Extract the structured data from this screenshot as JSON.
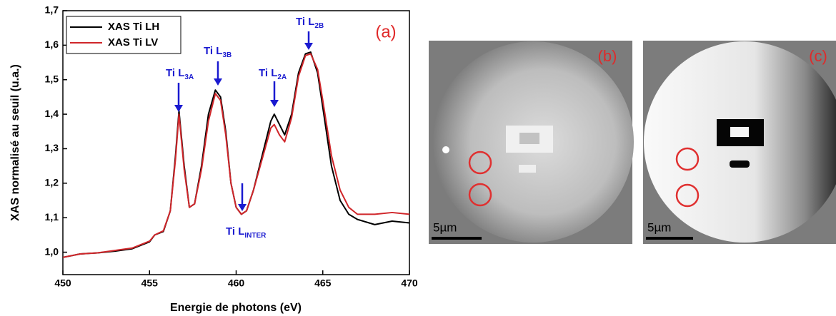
{
  "chart_data": {
    "type": "line",
    "title": "(a)",
    "x_label": "Energie de photons (eV)",
    "y_label": "XAS normalisé au seuil (u.a.)",
    "x": [
      450,
      451,
      452,
      453,
      454,
      455,
      455.3,
      455.8,
      456.2,
      456.5,
      456.7,
      457.0,
      457.3,
      457.6,
      458.0,
      458.4,
      458.8,
      459.1,
      459.4,
      459.7,
      460.0,
      460.3,
      460.6,
      461.0,
      461.5,
      462.0,
      462.2,
      462.5,
      462.8,
      463.2,
      463.6,
      464.0,
      464.3,
      464.7,
      465.0,
      465.5,
      466.0,
      466.5,
      467,
      468,
      469,
      470
    ],
    "series": [
      {
        "name": "XAS Ti LH",
        "color": "#000000",
        "values": [
          0.985,
          0.995,
          0.998,
          1.003,
          1.01,
          1.03,
          1.05,
          1.06,
          1.12,
          1.28,
          1.41,
          1.25,
          1.13,
          1.14,
          1.25,
          1.4,
          1.47,
          1.45,
          1.35,
          1.2,
          1.13,
          1.11,
          1.12,
          1.18,
          1.28,
          1.38,
          1.4,
          1.37,
          1.34,
          1.4,
          1.52,
          1.575,
          1.58,
          1.52,
          1.42,
          1.25,
          1.15,
          1.11,
          1.095,
          1.08,
          1.09,
          1.085
        ]
      },
      {
        "name": "XAS Ti LV",
        "color": "#d0262a",
        "values": [
          0.985,
          0.995,
          0.998,
          1.005,
          1.012,
          1.032,
          1.05,
          1.062,
          1.12,
          1.27,
          1.4,
          1.24,
          1.13,
          1.14,
          1.24,
          1.38,
          1.46,
          1.44,
          1.34,
          1.2,
          1.13,
          1.11,
          1.12,
          1.18,
          1.27,
          1.36,
          1.37,
          1.34,
          1.32,
          1.39,
          1.51,
          1.57,
          1.575,
          1.53,
          1.44,
          1.28,
          1.18,
          1.13,
          1.11,
          1.11,
          1.115,
          1.11
        ]
      }
    ],
    "xlim": [
      450,
      470
    ],
    "xticks": [
      450,
      455,
      460,
      465,
      470
    ],
    "ylim": [
      0.935,
      1.7
    ],
    "yticks": [
      {
        "value": 1.0,
        "label": "1,0"
      },
      {
        "value": 1.1,
        "label": "1,1"
      },
      {
        "value": 1.2,
        "label": "1,2"
      },
      {
        "value": 1.3,
        "label": "1,3"
      },
      {
        "value": 1.4,
        "label": "1,4"
      },
      {
        "value": 1.5,
        "label": "1,5"
      },
      {
        "value": 1.6,
        "label": "1,6"
      },
      {
        "value": 1.7,
        "label": "1,7"
      }
    ],
    "legend": "upper left",
    "annotations": [
      {
        "text": "Ti L",
        "sub": "3A"
      },
      {
        "text": "Ti L",
        "sub": "3B"
      },
      {
        "text": "Ti L",
        "sub": "2A"
      },
      {
        "text": "Ti L",
        "sub": "2B"
      },
      {
        "text": "Ti L",
        "sub": "INTER"
      }
    ]
  },
  "panels": [
    {
      "label": "(b)",
      "scale_bar": "5µm"
    },
    {
      "label": "(c)",
      "scale_bar": "5µm"
    }
  ]
}
